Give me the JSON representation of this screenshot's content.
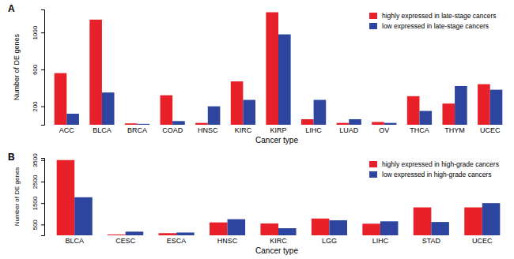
{
  "chart_data": [
    {
      "type": "bar",
      "title": "A",
      "x_label": "Cancer type",
      "y_label": "Number of DE genes",
      "categories": [
        "ACC",
        "BLCA",
        "BRCA",
        "COAD",
        "HNSC",
        "KIRC",
        "KIRP",
        "LIHC",
        "LUAD",
        "OV",
        "THCA",
        "THYM",
        "UCEC"
      ],
      "series": [
        {
          "name": "highly expressed in late-stage cancers",
          "color": "#e8202a",
          "values": [
            560,
            1140,
            15,
            320,
            20,
            470,
            1220,
            60,
            20,
            30,
            310,
            230,
            440
          ]
        },
        {
          "name": "low expressed in late-stage cancers",
          "color": "#2e45a0",
          "values": [
            120,
            350,
            10,
            40,
            200,
            270,
            980,
            270,
            60,
            20,
            150,
            420,
            380
          ]
        }
      ],
      "ylim": [
        0,
        1250
      ],
      "yticks": [
        200,
        600,
        1000
      ],
      "legend": "top-right"
    },
    {
      "type": "bar",
      "title": "B",
      "x_label": "Cancer type",
      "y_label": "Number of DE genes",
      "categories": [
        "BLCA",
        "CESC",
        "ESCA",
        "HNSC",
        "KIRC",
        "LGG",
        "LIHC",
        "STAD",
        "UCEC"
      ],
      "series": [
        {
          "name": "highly expressed in high-grade cancers",
          "color": "#e8202a",
          "values": [
            3500,
            40,
            100,
            600,
            550,
            780,
            540,
            1300,
            1300
          ]
        },
        {
          "name": "low expressed in high-grade cancers",
          "color": "#2e45a0",
          "values": [
            1770,
            170,
            130,
            750,
            330,
            700,
            650,
            620,
            1500
          ]
        }
      ],
      "ylim": [
        0,
        3600
      ],
      "yticks": [
        500,
        1500,
        2500,
        3500
      ],
      "legend": "top-right"
    }
  ]
}
